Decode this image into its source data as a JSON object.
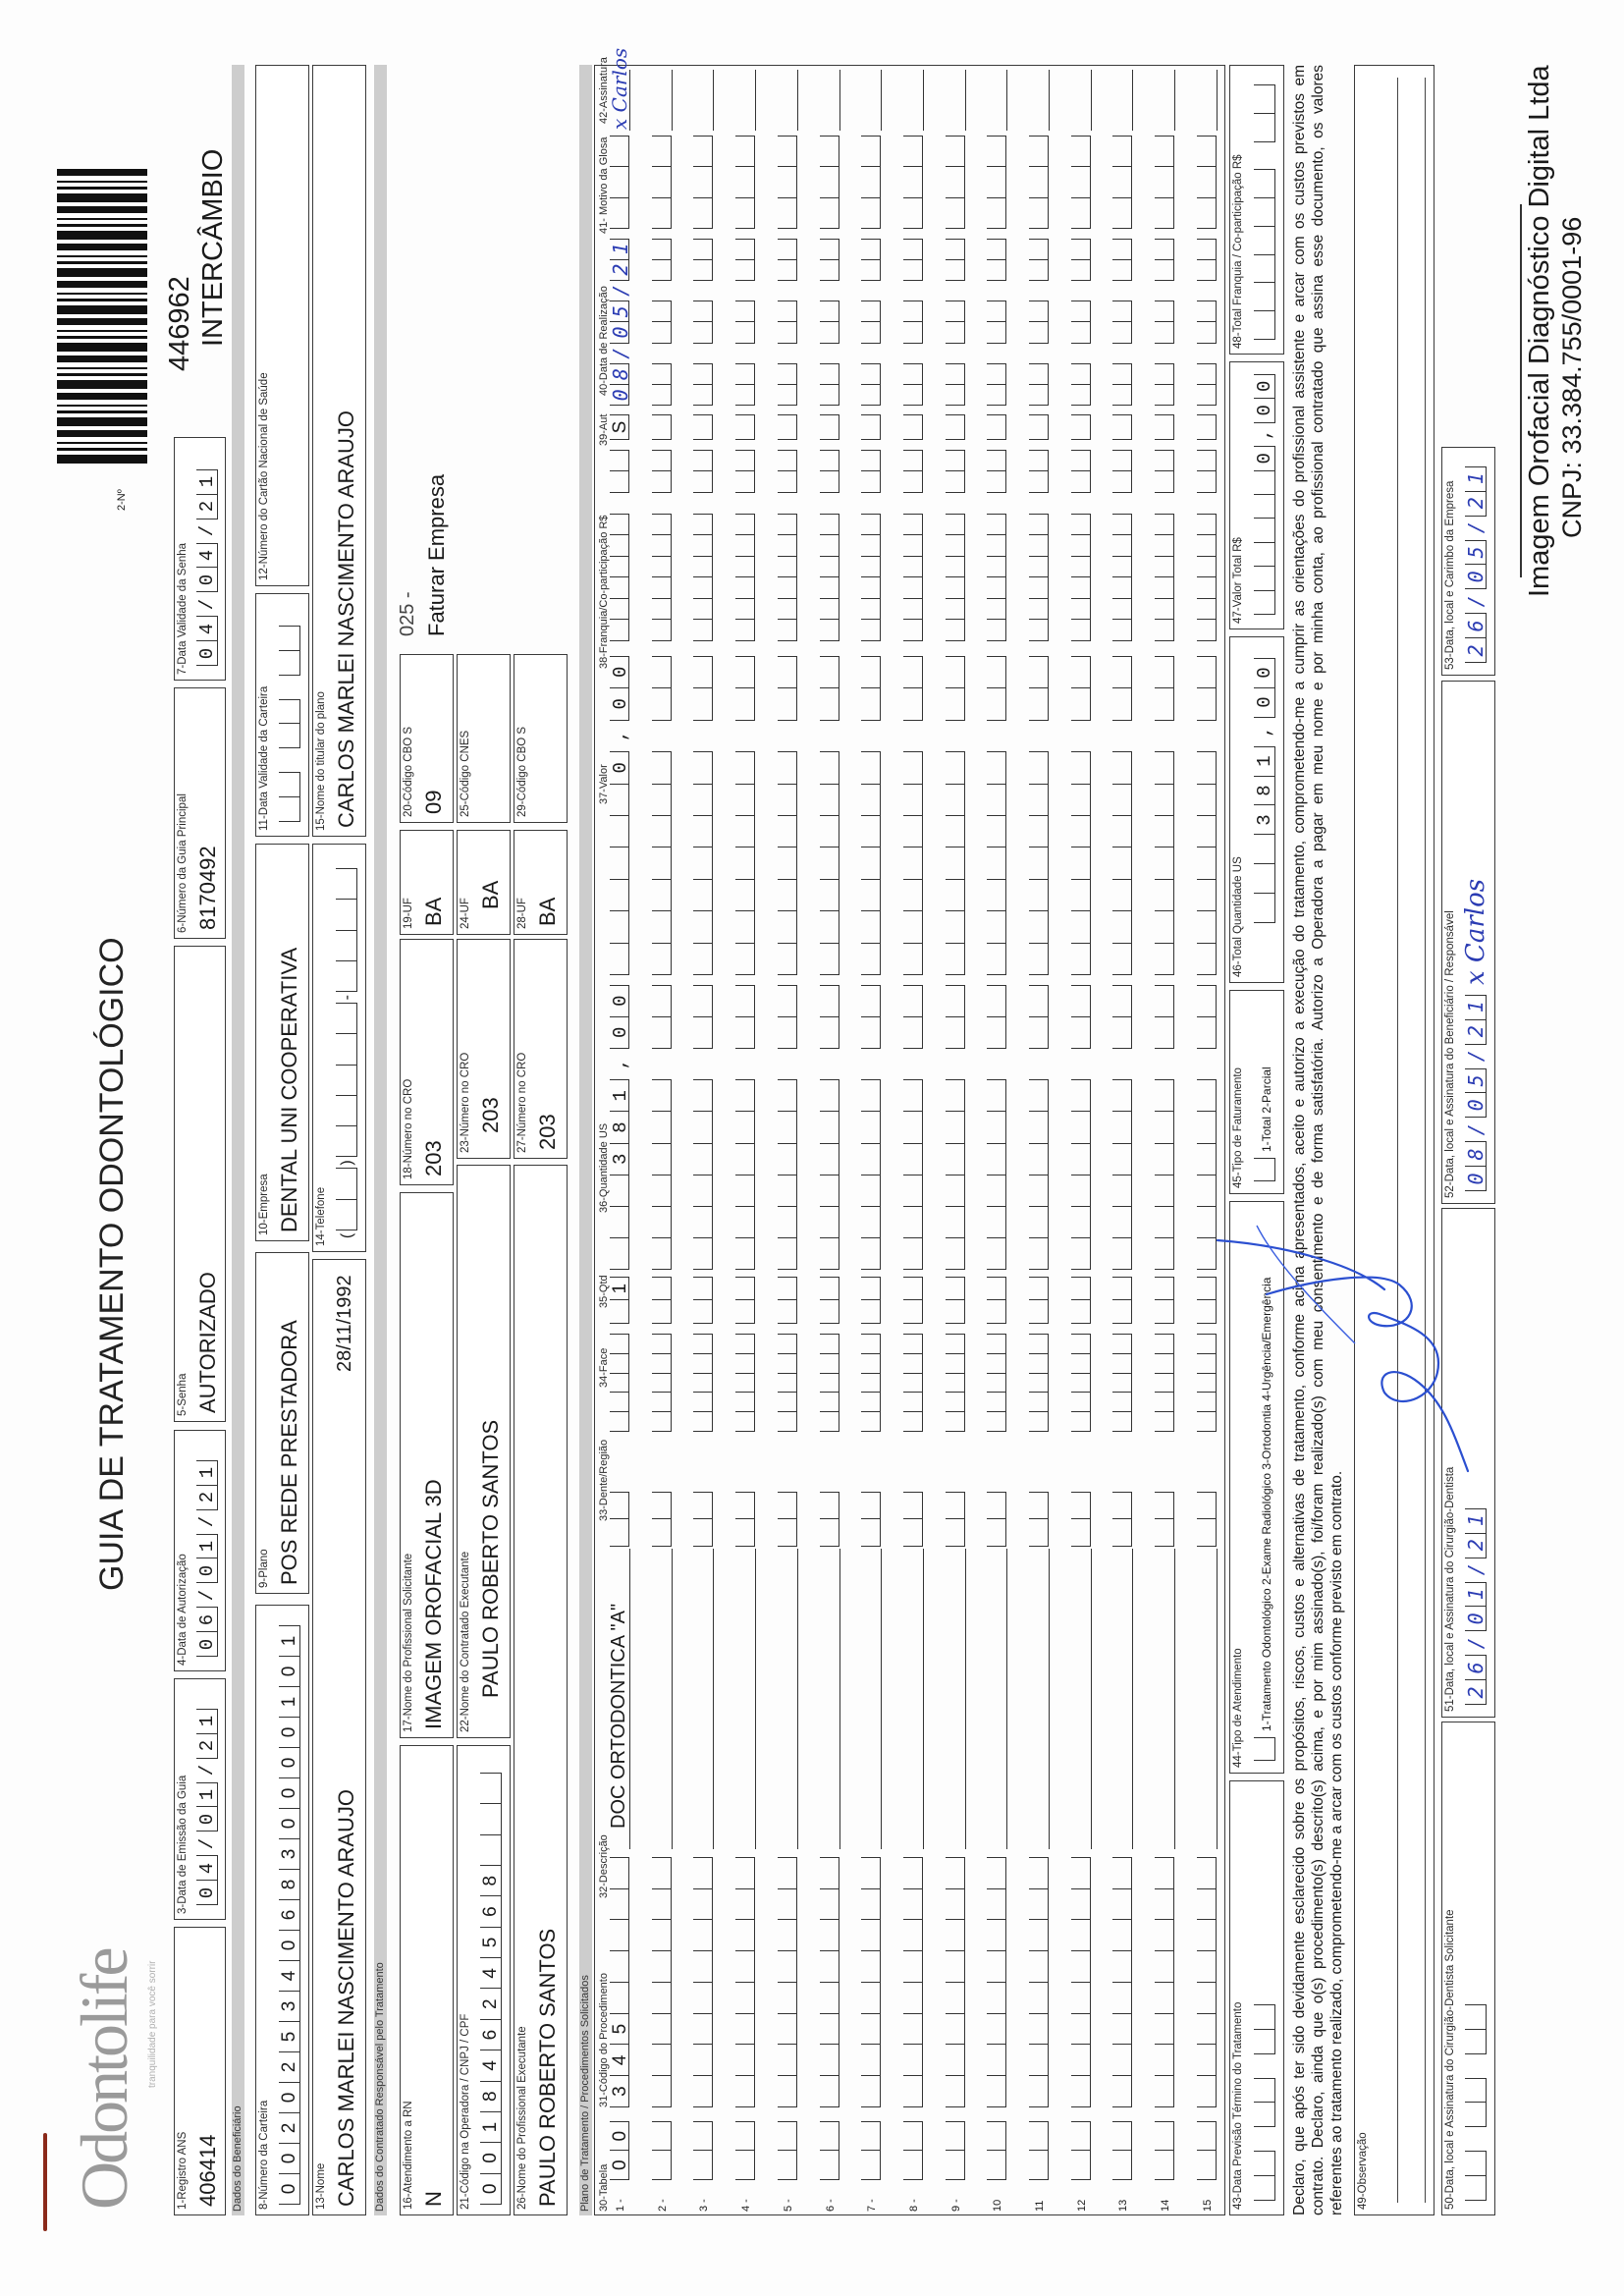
{
  "header": {
    "logo_text": "Odontolife",
    "logo_tagline": "tranquilidade para você sorrir",
    "title": "GUIA DE TRATAMENTO ODONTOLÓGICO",
    "guide_number_label": "2-Nº",
    "guide_number": "446962",
    "guide_type": "INTERCÂMBIO"
  },
  "sections": {
    "beneficiary": "Dados do Beneficiário",
    "contractor": "Dados do Contratado Responsável pelo Tratamento",
    "plan": "Plano de Tratamento / Procedimentos Solicitados"
  },
  "fields": {
    "f1": {
      "label": "1-Registro ANS",
      "value": "406414"
    },
    "f3": {
      "label": "3-Data de Emissão da Guia",
      "value": "04/01/21"
    },
    "f4": {
      "label": "4-Data de Autorização",
      "value": "06/01/21"
    },
    "f5": {
      "label": "5-Senha",
      "value": "AUTORIZADO"
    },
    "f6": {
      "label": "6-Número da Guia Principal",
      "value": "8170492"
    },
    "f7": {
      "label": "7-Data Validade da Senha",
      "value": "04/04/21"
    },
    "f8": {
      "label": "8-Número da Carteira",
      "value": "0020253406830000101"
    },
    "f9": {
      "label": "9-Plano",
      "value": "POS REDE PRESTADORA"
    },
    "f10": {
      "label": "10-Empresa",
      "value": "DENTAL UNI  COOPERATIVA"
    },
    "f11": {
      "label": "11-Data Validade da Carteira",
      "value": ""
    },
    "f12": {
      "label": "12-Número do Cartão Nacional de Saúde",
      "value": ""
    },
    "f13": {
      "label": "13-Nome",
      "value": "CARLOS MARLEI NASCIMENTO ARAUJO",
      "birth_date": "28/11/1992"
    },
    "f14": {
      "label": "14-Telefone",
      "value": ""
    },
    "f15": {
      "label": "15-Nome do titular do plano",
      "value": "CARLOS MARLEI NASCIMENTO ARAUJO"
    },
    "f16": {
      "label": "16-Atendimento a RN",
      "value": "N"
    },
    "f17": {
      "label": "17-Nome do Profissional Solicitante",
      "value": "IMAGEM OROFACIAL 3D"
    },
    "f18": {
      "label": "18-Número no CRO",
      "value": "203"
    },
    "f19": {
      "label": "19-UF",
      "value": "BA"
    },
    "f20": {
      "label": "20-Código CBO S",
      "value": "09"
    },
    "f21": {
      "label": "21-Código na Operadora / CNPJ / CPF",
      "value": "00184624568"
    },
    "f22": {
      "label": "22-Nome do Contratado Executante",
      "value": "PAULO ROBERTO SANTOS"
    },
    "f23": {
      "label": "23-Número no CRO",
      "value": "203"
    },
    "f24": {
      "label": "24-UF",
      "value": "BA"
    },
    "f25": {
      "label": "25-Código CNES",
      "value": ""
    },
    "f26": {
      "label": "26-Nome do Profissional Executante",
      "value": "PAULO ROBERTO SANTOS"
    },
    "f27": {
      "label": "27-Número no CRO",
      "value": "203"
    },
    "f28": {
      "label": "28-UF",
      "value": "BA"
    },
    "f29": {
      "label": "29-Código CBO S",
      "value": ""
    },
    "f43": {
      "label": "43-Data Previsão Término do Tratamento",
      "value": ""
    },
    "f44": {
      "label": "44-Tipo de Atendimento",
      "value": "",
      "options": "1-Tratamento Odontológico  2-Exame Radiológico  3-Ortodontia  4-Urgência/Emergência"
    },
    "f45": {
      "label": "45-Tipo de Faturamento",
      "value": "",
      "options": "1-Total  2-Parcial"
    },
    "f46": {
      "label": "46-Total Quantidade US",
      "value": "381,00"
    },
    "f47": {
      "label": "47-Valor Total R$",
      "value": "0,00"
    },
    "f48": {
      "label": "48-Total Franquia / Co-participação R$",
      "value": ""
    },
    "f49": {
      "label": "49-Observação",
      "value": ""
    },
    "f50": {
      "label": "50-Data, local e Assinatura do Cirurgião-Dentista Solicitante",
      "value": ""
    },
    "f51": {
      "label": "51-Data, local e Assinatura do Cirurgião-Dentista",
      "value": "26/01/21"
    },
    "f52": {
      "label": "52-Data, local e Assinatura do Beneficiário / Responsável",
      "value": "08/05/21",
      "signature": "x Carlos"
    },
    "f53": {
      "label": "53-Data, local e Carimbo da Empresa",
      "value": "26/05/21"
    }
  },
  "billing_note": {
    "code": "025 -",
    "text": "Faturar Empresa"
  },
  "plan": {
    "columns": {
      "c30": "30-Tabela",
      "c31": "31-Código do Procedimento",
      "c32": "32-Descrição",
      "c33": "33-Dente/Região",
      "c34": "34-Face",
      "c35": "35-Qtd",
      "c36": "36-Quantidade US",
      "c37": "37-Valor",
      "c38": "38-Franquia/Co-participação R$",
      "c39": "39-Aut",
      "c40": "40-Data de Realização",
      "c41": "41- Motivo da Glosa",
      "c42": "42-Assinatura"
    },
    "rows": [
      {
        "number": "1 -",
        "tabela": "00",
        "code": "345",
        "description": "DOC ORTODONTICA \"A\"",
        "tooth": "",
        "face": "",
        "qty": "1",
        "qty_us": "381,00",
        "value": "0,00",
        "copay": "",
        "aut": "S",
        "date": "08/05/21",
        "gloss": "",
        "signature": "x Carlos"
      },
      {
        "number": "2 -",
        "tabela": "",
        "code": "",
        "description": "",
        "tooth": "",
        "face": "",
        "qty": "",
        "qty_us": "",
        "value": "",
        "copay": "",
        "aut": "",
        "date": "",
        "gloss": "",
        "signature": ""
      },
      {
        "number": "3 -",
        "tabela": "",
        "code": "",
        "description": "",
        "tooth": "",
        "face": "",
        "qty": "",
        "qty_us": "",
        "value": "",
        "copay": "",
        "aut": "",
        "date": "",
        "gloss": "",
        "signature": ""
      },
      {
        "number": "4 -",
        "tabela": "",
        "code": "",
        "description": "",
        "tooth": "",
        "face": "",
        "qty": "",
        "qty_us": "",
        "value": "",
        "copay": "",
        "aut": "",
        "date": "",
        "gloss": "",
        "signature": ""
      },
      {
        "number": "5 -",
        "tabela": "",
        "code": "",
        "description": "",
        "tooth": "",
        "face": "",
        "qty": "",
        "qty_us": "",
        "value": "",
        "copay": "",
        "aut": "",
        "date": "",
        "gloss": "",
        "signature": ""
      },
      {
        "number": "6 -",
        "tabela": "",
        "code": "",
        "description": "",
        "tooth": "",
        "face": "",
        "qty": "",
        "qty_us": "",
        "value": "",
        "copay": "",
        "aut": "",
        "date": "",
        "gloss": "",
        "signature": ""
      },
      {
        "number": "7 -",
        "tabela": "",
        "code": "",
        "description": "",
        "tooth": "",
        "face": "",
        "qty": "",
        "qty_us": "",
        "value": "",
        "copay": "",
        "aut": "",
        "date": "",
        "gloss": "",
        "signature": ""
      },
      {
        "number": "8 -",
        "tabela": "",
        "code": "",
        "description": "",
        "tooth": "",
        "face": "",
        "qty": "",
        "qty_us": "",
        "value": "",
        "copay": "",
        "aut": "",
        "date": "",
        "gloss": "",
        "signature": ""
      },
      {
        "number": "9 -",
        "tabela": "",
        "code": "",
        "description": "",
        "tooth": "",
        "face": "",
        "qty": "",
        "qty_us": "",
        "value": "",
        "copay": "",
        "aut": "",
        "date": "",
        "gloss": "",
        "signature": ""
      },
      {
        "number": "10",
        "tabela": "",
        "code": "",
        "description": "",
        "tooth": "",
        "face": "",
        "qty": "",
        "qty_us": "",
        "value": "",
        "copay": "",
        "aut": "",
        "date": "",
        "gloss": "",
        "signature": ""
      },
      {
        "number": "11",
        "tabela": "",
        "code": "",
        "description": "",
        "tooth": "",
        "face": "",
        "qty": "",
        "qty_us": "",
        "value": "",
        "copay": "",
        "aut": "",
        "date": "",
        "gloss": "",
        "signature": ""
      },
      {
        "number": "12",
        "tabela": "",
        "code": "",
        "description": "",
        "tooth": "",
        "face": "",
        "qty": "",
        "qty_us": "",
        "value": "",
        "copay": "",
        "aut": "",
        "date": "",
        "gloss": "",
        "signature": ""
      },
      {
        "number": "13",
        "tabela": "",
        "code": "",
        "description": "",
        "tooth": "",
        "face": "",
        "qty": "",
        "qty_us": "",
        "value": "",
        "copay": "",
        "aut": "",
        "date": "",
        "gloss": "",
        "signature": ""
      },
      {
        "number": "14",
        "tabela": "",
        "code": "",
        "description": "",
        "tooth": "",
        "face": "",
        "qty": "",
        "qty_us": "",
        "value": "",
        "copay": "",
        "aut": "",
        "date": "",
        "gloss": "",
        "signature": ""
      },
      {
        "number": "15",
        "tabela": "",
        "code": "",
        "description": "",
        "tooth": "",
        "face": "",
        "qty": "",
        "qty_us": "",
        "value": "",
        "copay": "",
        "aut": "",
        "date": "",
        "gloss": "",
        "signature": ""
      }
    ]
  },
  "declaration": [
    "Declaro, que após ter sido devidamente esclarecido sobre os propósitos, riscos, custos e alternativas de tratamento, conforme acima apresentados, aceito e autorizo a execução do tratamento, comprometendo-me a cumprir as orientações do profissional assistente e arcar com os custos previstos em",
    "contrato. Declaro, ainda que o(s) procedimento(s) descrito(s) acima, e por mim assinado(s), foi/foram realizado(s) com meu consentimento e de forma satisfatória. Autorizo a Operadora a pagar em meu nome e por minha conta, ao profissional contratado que assina esse documento, os valores",
    "referentes ao tratamento realizado, comprometendo-me a arcar com os custos conforme previsto em contrato."
  ],
  "company": {
    "name": "Imagem Orofacial Diagnóstico Digital Ltda",
    "cnpj": "CNPJ: 33.384.755/0001-96"
  },
  "colors": {
    "ink": "#1a1a1a",
    "handwriting": "#2b3cb3",
    "band": "#cdcdcd",
    "logo": "#9a9a9a"
  }
}
